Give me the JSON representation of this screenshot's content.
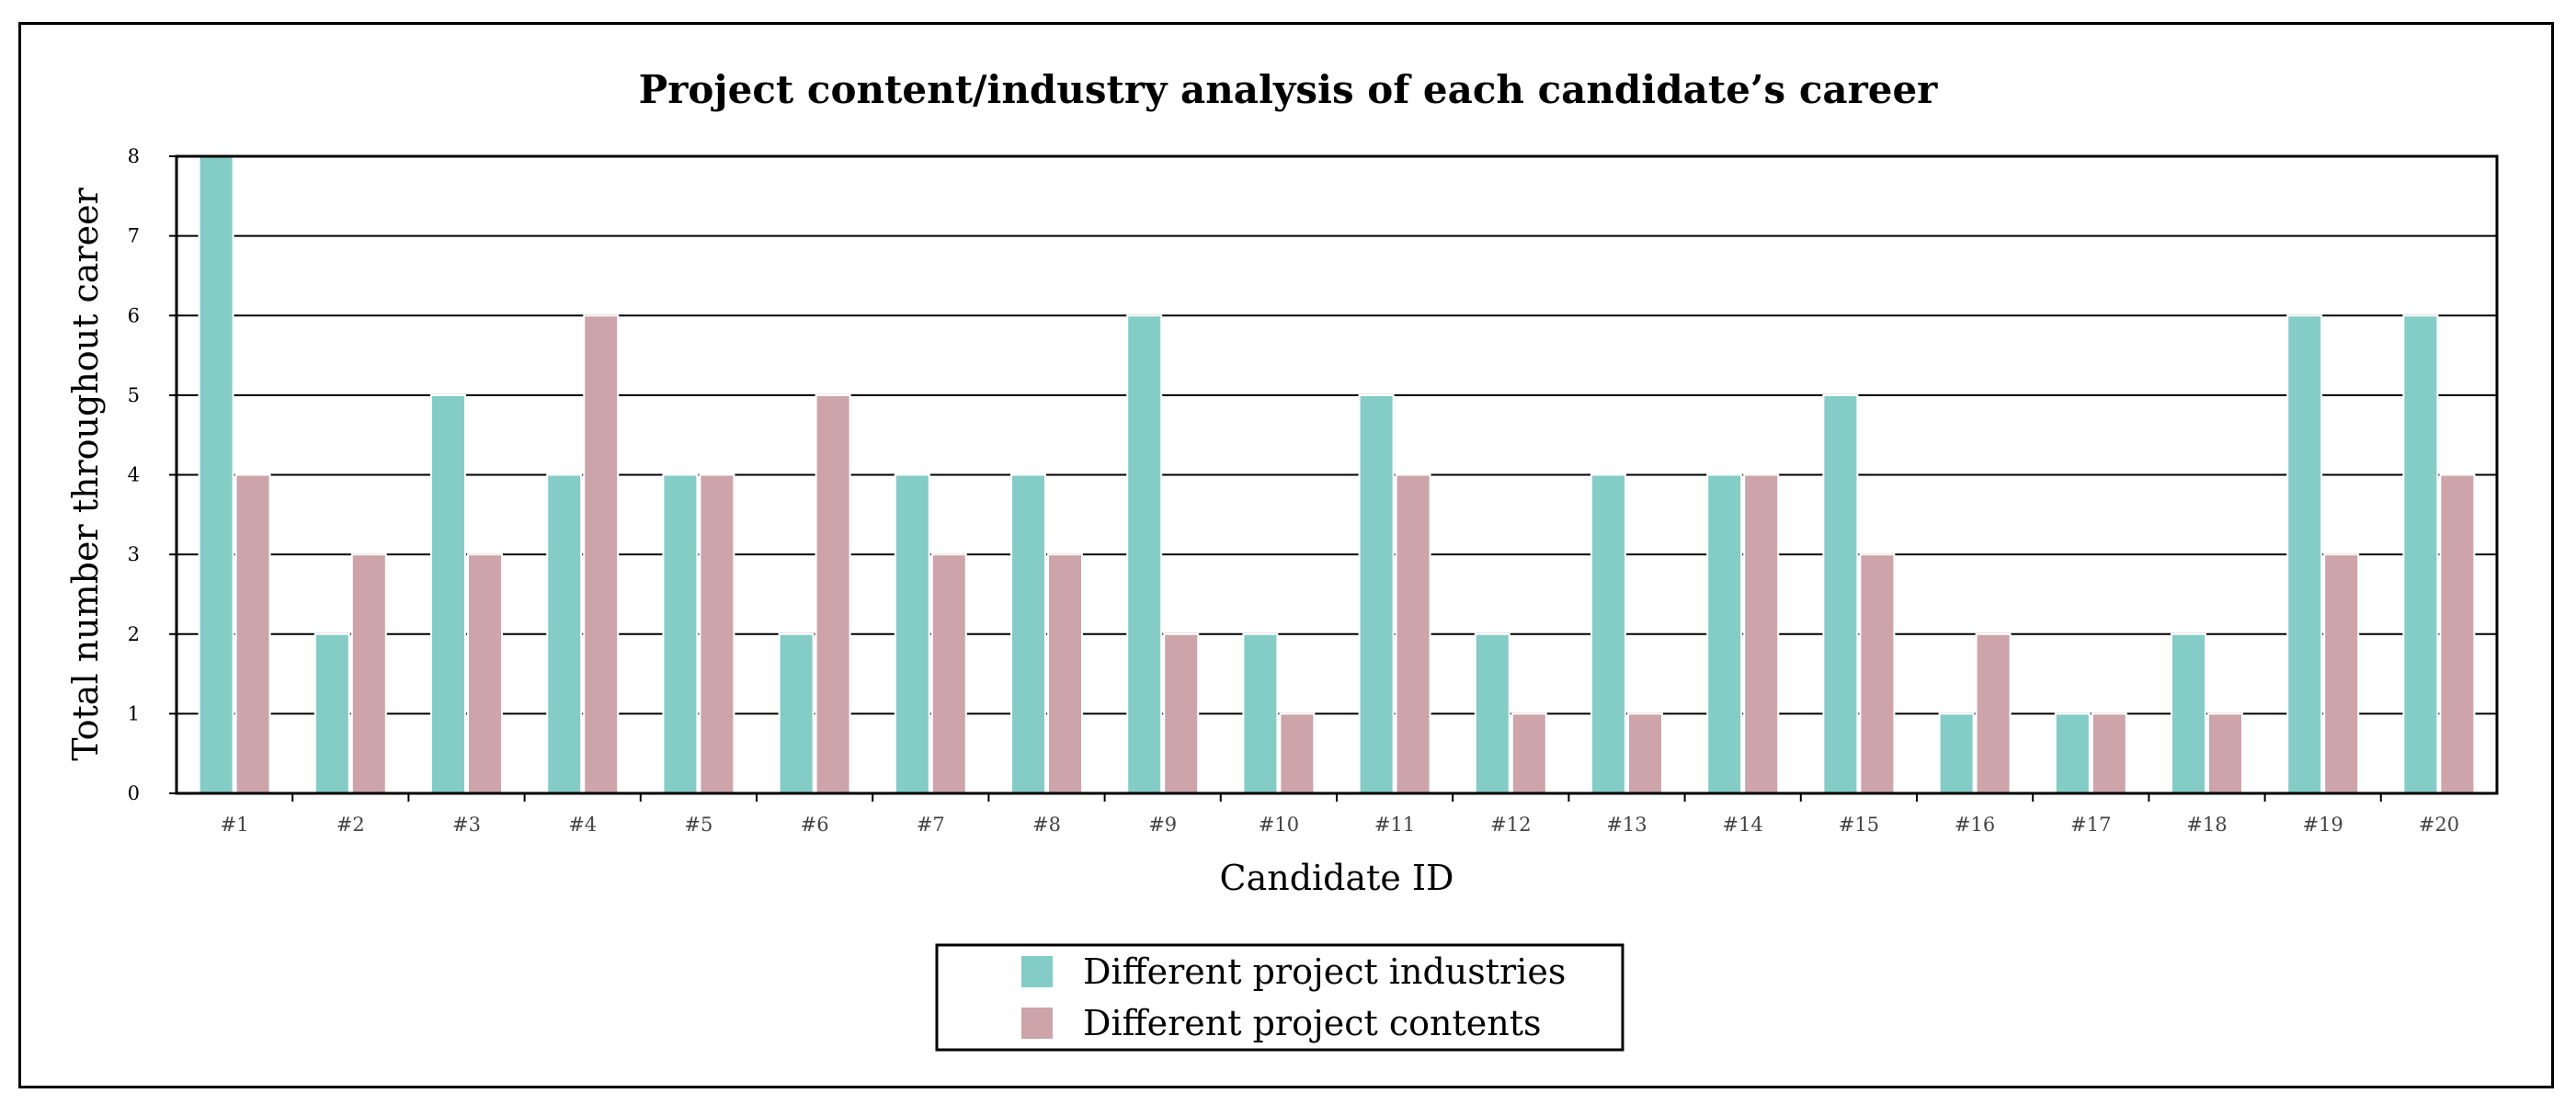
{
  "chart_data": {
    "type": "bar",
    "title": "Project content/industry analysis of each candidate’s career",
    "xlabel": "Candidate ID",
    "ylabel": "Total number throughout career",
    "ylim": [
      0,
      8
    ],
    "yticks": [
      "0",
      "1",
      "2",
      "3",
      "4",
      "5",
      "6",
      "7",
      "8"
    ],
    "grid": "horizontal",
    "legend_position": "bottom-center",
    "categories": [
      "#1",
      "#2",
      "#3",
      "#4",
      "#5",
      "#6",
      "#7",
      "#8",
      "#9",
      "#10",
      "#11",
      "#12",
      "#13",
      "#14",
      "#15",
      "#16",
      "#17",
      "#18",
      "#19",
      "#20"
    ],
    "series": [
      {
        "name": "Different project industries",
        "color": "#84ccc6",
        "values": [
          8,
          2,
          5,
          4,
          4,
          2,
          4,
          4,
          6,
          2,
          5,
          2,
          4,
          4,
          5,
          1,
          1,
          2,
          6,
          6
        ]
      },
      {
        "name": "Different project contents",
        "color": "#cca4aa",
        "values": [
          4,
          3,
          3,
          6,
          4,
          5,
          3,
          3,
          2,
          1,
          4,
          1,
          1,
          4,
          3,
          2,
          1,
          1,
          3,
          4
        ]
      }
    ]
  }
}
